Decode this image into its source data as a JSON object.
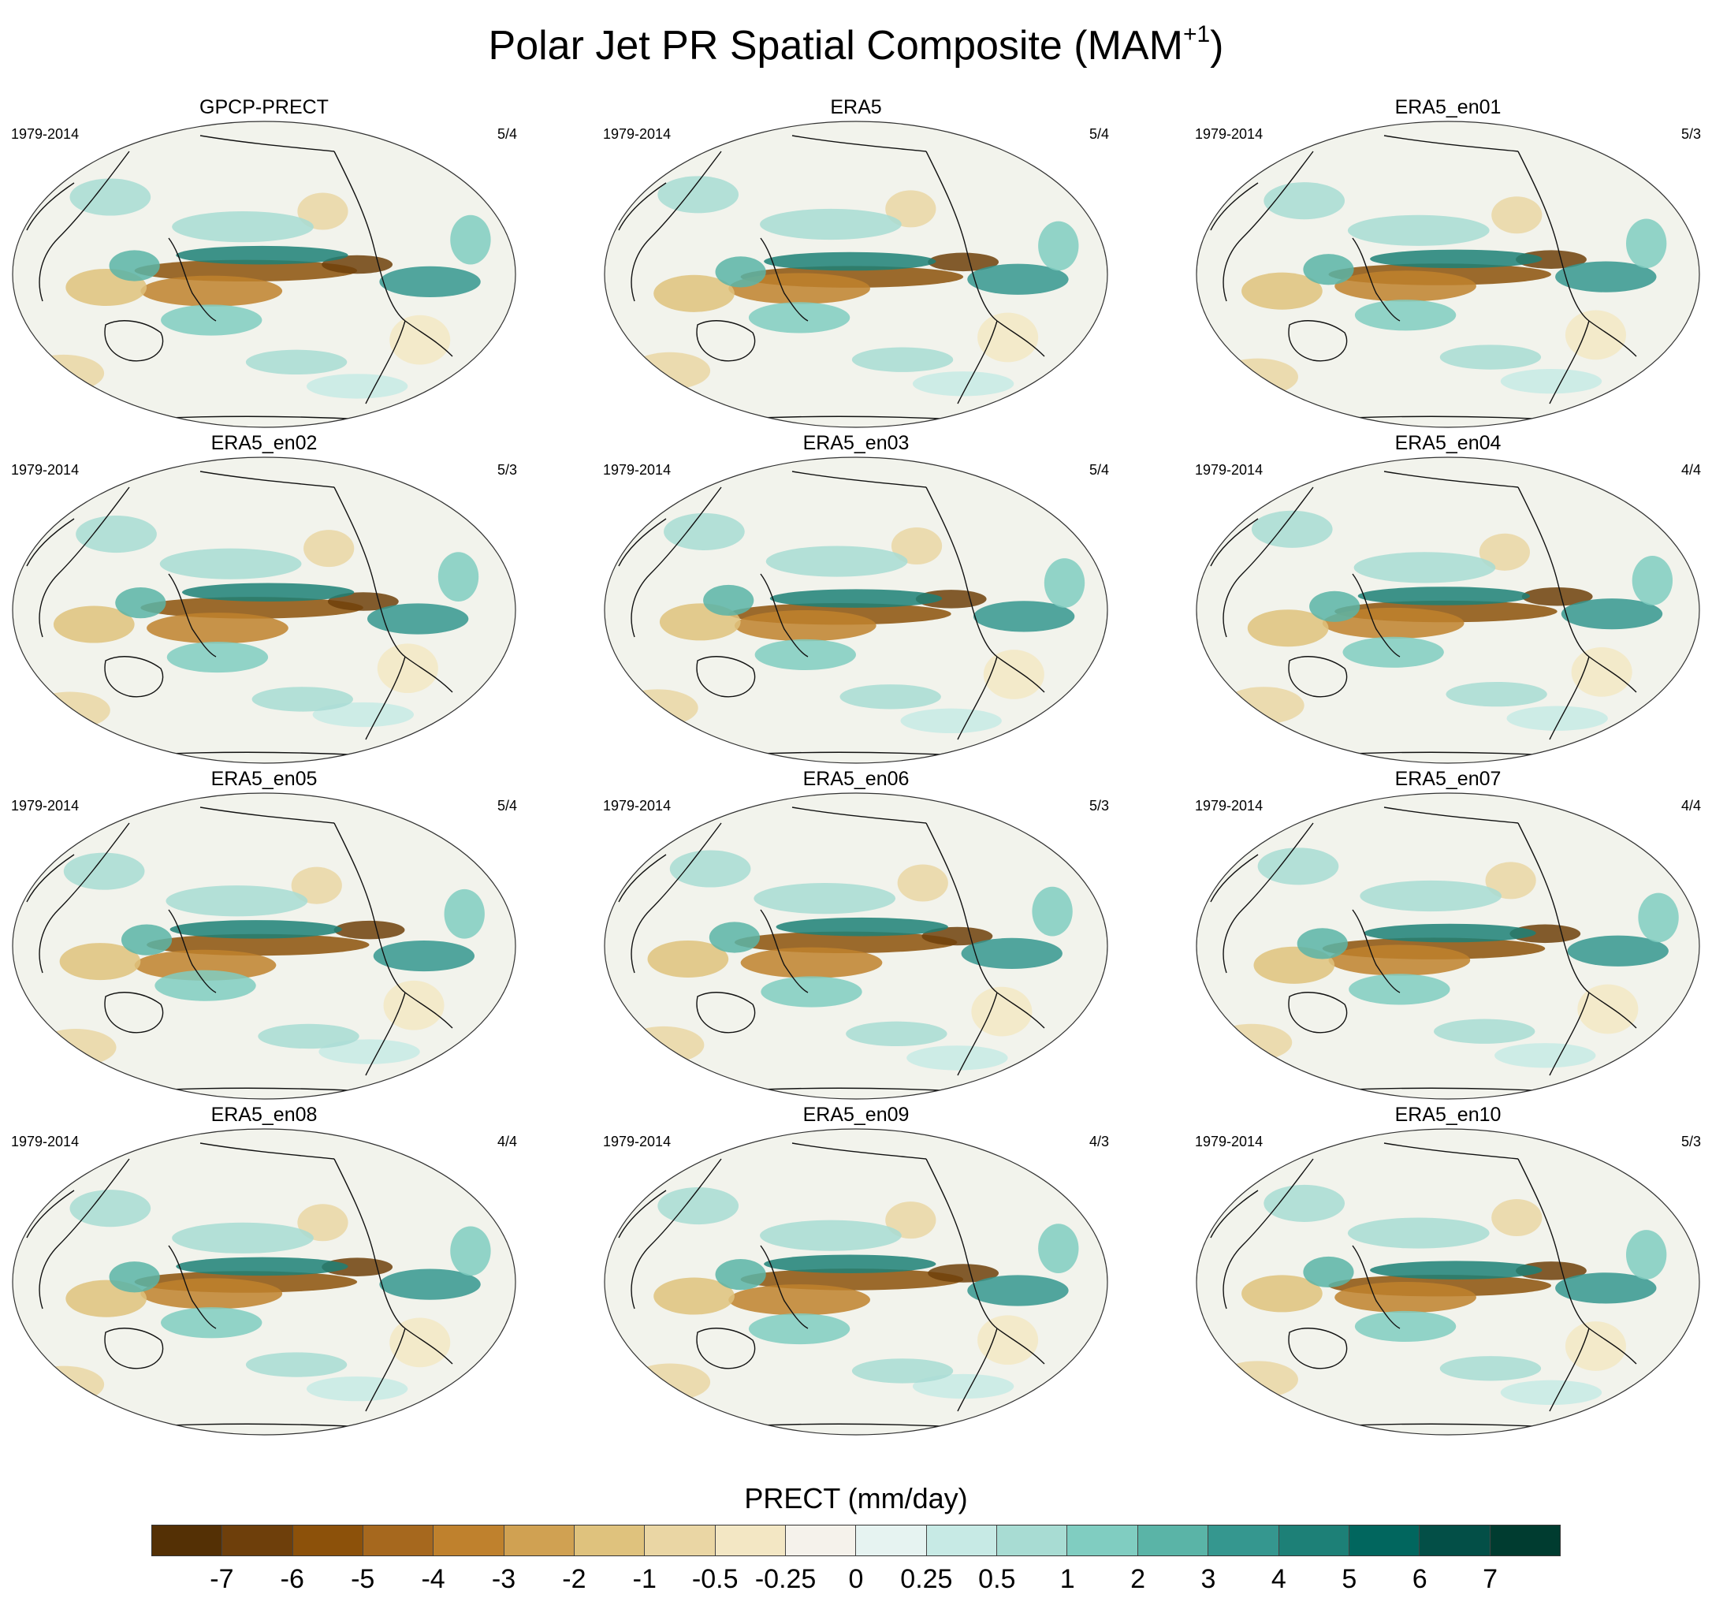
{
  "title_main": "Polar Jet PR Spatial Composite (MAM",
  "title_sup": "+1",
  "title_close": ")",
  "chart_data": {
    "type": "heatmap",
    "title": "Polar Jet PR Spatial Composite (MAM+1)",
    "variable": "PRECT (mm/day)",
    "projection": "Robinson (Pacific-centered)",
    "panels": [
      {
        "name": "GPCP-PRECT",
        "period": "1979-2014",
        "count": "5/4"
      },
      {
        "name": "ERA5",
        "period": "1979-2014",
        "count": "5/4"
      },
      {
        "name": "ERA5_en01",
        "period": "1979-2014",
        "count": "5/3"
      },
      {
        "name": "ERA5_en02",
        "period": "1979-2014",
        "count": "5/3"
      },
      {
        "name": "ERA5_en03",
        "period": "1979-2014",
        "count": "5/4"
      },
      {
        "name": "ERA5_en04",
        "period": "1979-2014",
        "count": "4/4"
      },
      {
        "name": "ERA5_en05",
        "period": "1979-2014",
        "count": "5/4"
      },
      {
        "name": "ERA5_en06",
        "period": "1979-2014",
        "count": "5/3"
      },
      {
        "name": "ERA5_en07",
        "period": "1979-2014",
        "count": "4/4"
      },
      {
        "name": "ERA5_en08",
        "period": "1979-2014",
        "count": "4/4"
      },
      {
        "name": "ERA5_en09",
        "period": "1979-2014",
        "count": "4/3"
      },
      {
        "name": "ERA5_en10",
        "period": "1979-2014",
        "count": "5/3"
      }
    ],
    "colorbar": {
      "label": "PRECT (mm/day)",
      "levels": [
        "-7",
        "-6",
        "-5",
        "-4",
        "-3",
        "-2",
        "-1",
        "-0.5",
        "-0.25",
        "0",
        "0.25",
        "0.5",
        "1",
        "2",
        "3",
        "4",
        "5",
        "6",
        "7"
      ],
      "colors": [
        "#543005",
        "#6e3f0b",
        "#8c510a",
        "#a6681e",
        "#bf812d",
        "#d0a152",
        "#dfc27d",
        "#ead6a4",
        "#f3e7c4",
        "#f5f2eb",
        "#e6f3f1",
        "#c7eae5",
        "#a8dcd3",
        "#80cdc1",
        "#5ab4a7",
        "#35978f",
        "#1d8077",
        "#01665e",
        "#034f47",
        "#003c30"
      ]
    }
  }
}
